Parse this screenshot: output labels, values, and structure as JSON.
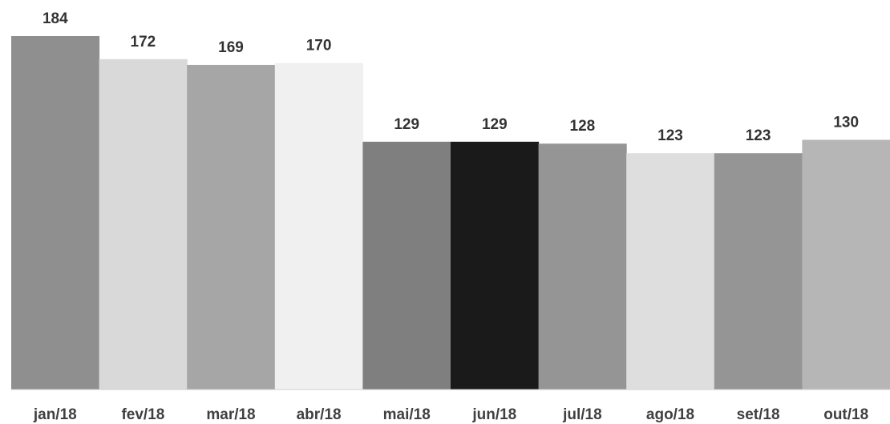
{
  "chart_data": {
    "type": "bar",
    "title": "",
    "xlabel": "",
    "ylabel": "",
    "categories": [
      "jan/18",
      "fev/18",
      "mar/18",
      "abr/18",
      "mai/18",
      "jun/18",
      "jul/18",
      "ago/18",
      "set/18",
      "out/18"
    ],
    "values": [
      184,
      172,
      169,
      170,
      129,
      129,
      128,
      123,
      123,
      130
    ],
    "bar_colors": [
      "#8f8f8f",
      "#d9d9d9",
      "#a6a6a6",
      "#f0f0f0",
      "#7f7f7f",
      "#1a1a1a",
      "#959595",
      "#dedede",
      "#959595",
      "#b6b6b6"
    ],
    "ylim": [
      0,
      195
    ],
    "grid": false,
    "legend": "none",
    "data_labels": true
  }
}
